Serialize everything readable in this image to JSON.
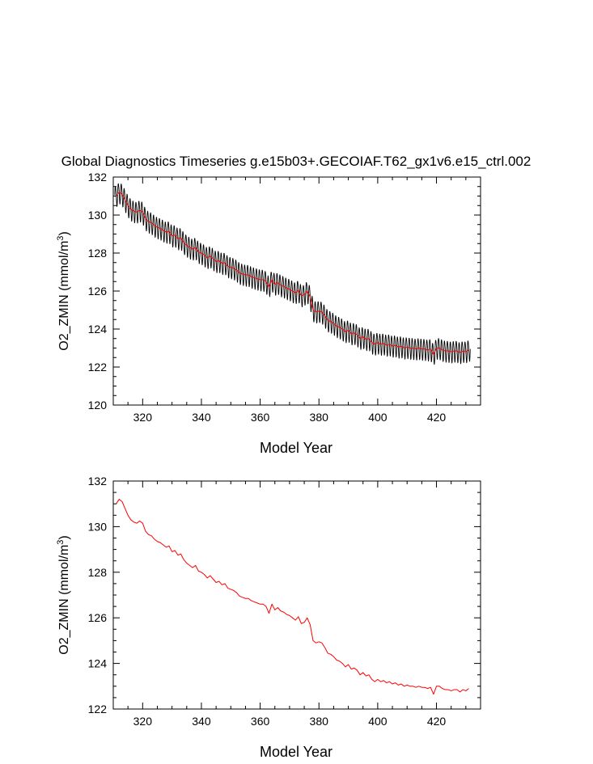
{
  "title": "Global Diagnostics Timeseries g.e15b03+.GECOIAF.T62_gx1v6.e15_ctrl.002",
  "colors": {
    "monthly": "#000000",
    "annual": "#ff0000",
    "axis": "#000000",
    "background": "#ffffff"
  },
  "chart_data": [
    {
      "id": "top",
      "type": "line",
      "xlabel": "Model Year",
      "ylabel_main": "O2_ZMIN (mmol/m",
      "ylabel_sup": "3",
      "ylabel_tail": ")",
      "xlim": [
        310,
        435
      ],
      "ylim": [
        120,
        132
      ],
      "xticks": [
        320,
        340,
        360,
        380,
        400,
        420
      ],
      "yticks": [
        120,
        122,
        124,
        126,
        128,
        130,
        132
      ],
      "xtick_labels": [
        "320",
        "340",
        "360",
        "380",
        "400",
        "420"
      ],
      "ytick_labels": [
        "120",
        "122",
        "124",
        "126",
        "128",
        "130",
        "132"
      ],
      "series": [
        {
          "name": "monthly",
          "color": "#000000",
          "x_start": 310.5,
          "step": 0.0833333,
          "seasonal_amplitude": 0.55,
          "base_series": "annual"
        },
        {
          "name": "annual",
          "color": "#ff0000",
          "from_shared": "annual"
        }
      ]
    },
    {
      "id": "bottom",
      "type": "line",
      "xlabel": "Model Year",
      "ylabel_main": "O2_ZMIN (mmol/m",
      "ylabel_sup": "3",
      "ylabel_tail": ")",
      "xlim": [
        310,
        435
      ],
      "ylim": [
        122,
        132
      ],
      "xticks": [
        320,
        340,
        360,
        380,
        400,
        420
      ],
      "yticks": [
        122,
        124,
        126,
        128,
        130,
        132
      ],
      "xtick_labels": [
        "320",
        "340",
        "360",
        "380",
        "400",
        "420"
      ],
      "ytick_labels": [
        "122",
        "124",
        "126",
        "128",
        "130",
        "132"
      ],
      "series": [
        {
          "name": "annual",
          "color": "#ff0000",
          "from_shared": "annual"
        }
      ]
    }
  ],
  "annual": {
    "x_start": 311,
    "step": 1,
    "values": [
      131.0,
      131.2,
      131.1,
      130.8,
      130.5,
      130.3,
      130.2,
      130.15,
      130.25,
      130.15,
      129.8,
      129.65,
      129.6,
      129.45,
      129.35,
      129.3,
      129.2,
      129.1,
      129.15,
      128.9,
      128.95,
      128.75,
      128.8,
      128.55,
      128.4,
      128.3,
      128.2,
      128.3,
      128.05,
      128.0,
      127.9,
      127.75,
      127.85,
      127.7,
      127.55,
      127.6,
      127.45,
      127.5,
      127.3,
      127.25,
      127.2,
      127.1,
      126.95,
      126.9,
      126.85,
      126.85,
      126.75,
      126.7,
      126.65,
      126.6,
      126.6,
      126.5,
      126.2,
      126.6,
      126.35,
      126.45,
      126.3,
      126.25,
      126.15,
      126.1,
      126.0,
      125.9,
      126.05,
      125.75,
      125.8,
      126.0,
      125.7,
      125.0,
      124.9,
      124.95,
      124.9,
      124.7,
      124.45,
      124.4,
      124.3,
      124.15,
      124.1,
      124.0,
      123.85,
      123.95,
      123.75,
      123.8,
      123.7,
      123.5,
      123.6,
      123.45,
      123.5,
      123.3,
      123.2,
      123.3,
      123.2,
      123.25,
      123.15,
      123.2,
      123.1,
      123.15,
      123.05,
      123.1,
      123.0,
      123.05,
      123.0,
      123.0,
      122.95,
      123.0,
      122.95,
      122.95,
      122.9,
      122.95,
      122.65,
      123.0,
      123.0,
      122.9,
      122.85,
      122.85,
      122.8,
      122.85,
      122.85,
      122.75,
      122.85,
      122.8,
      122.9
    ]
  }
}
